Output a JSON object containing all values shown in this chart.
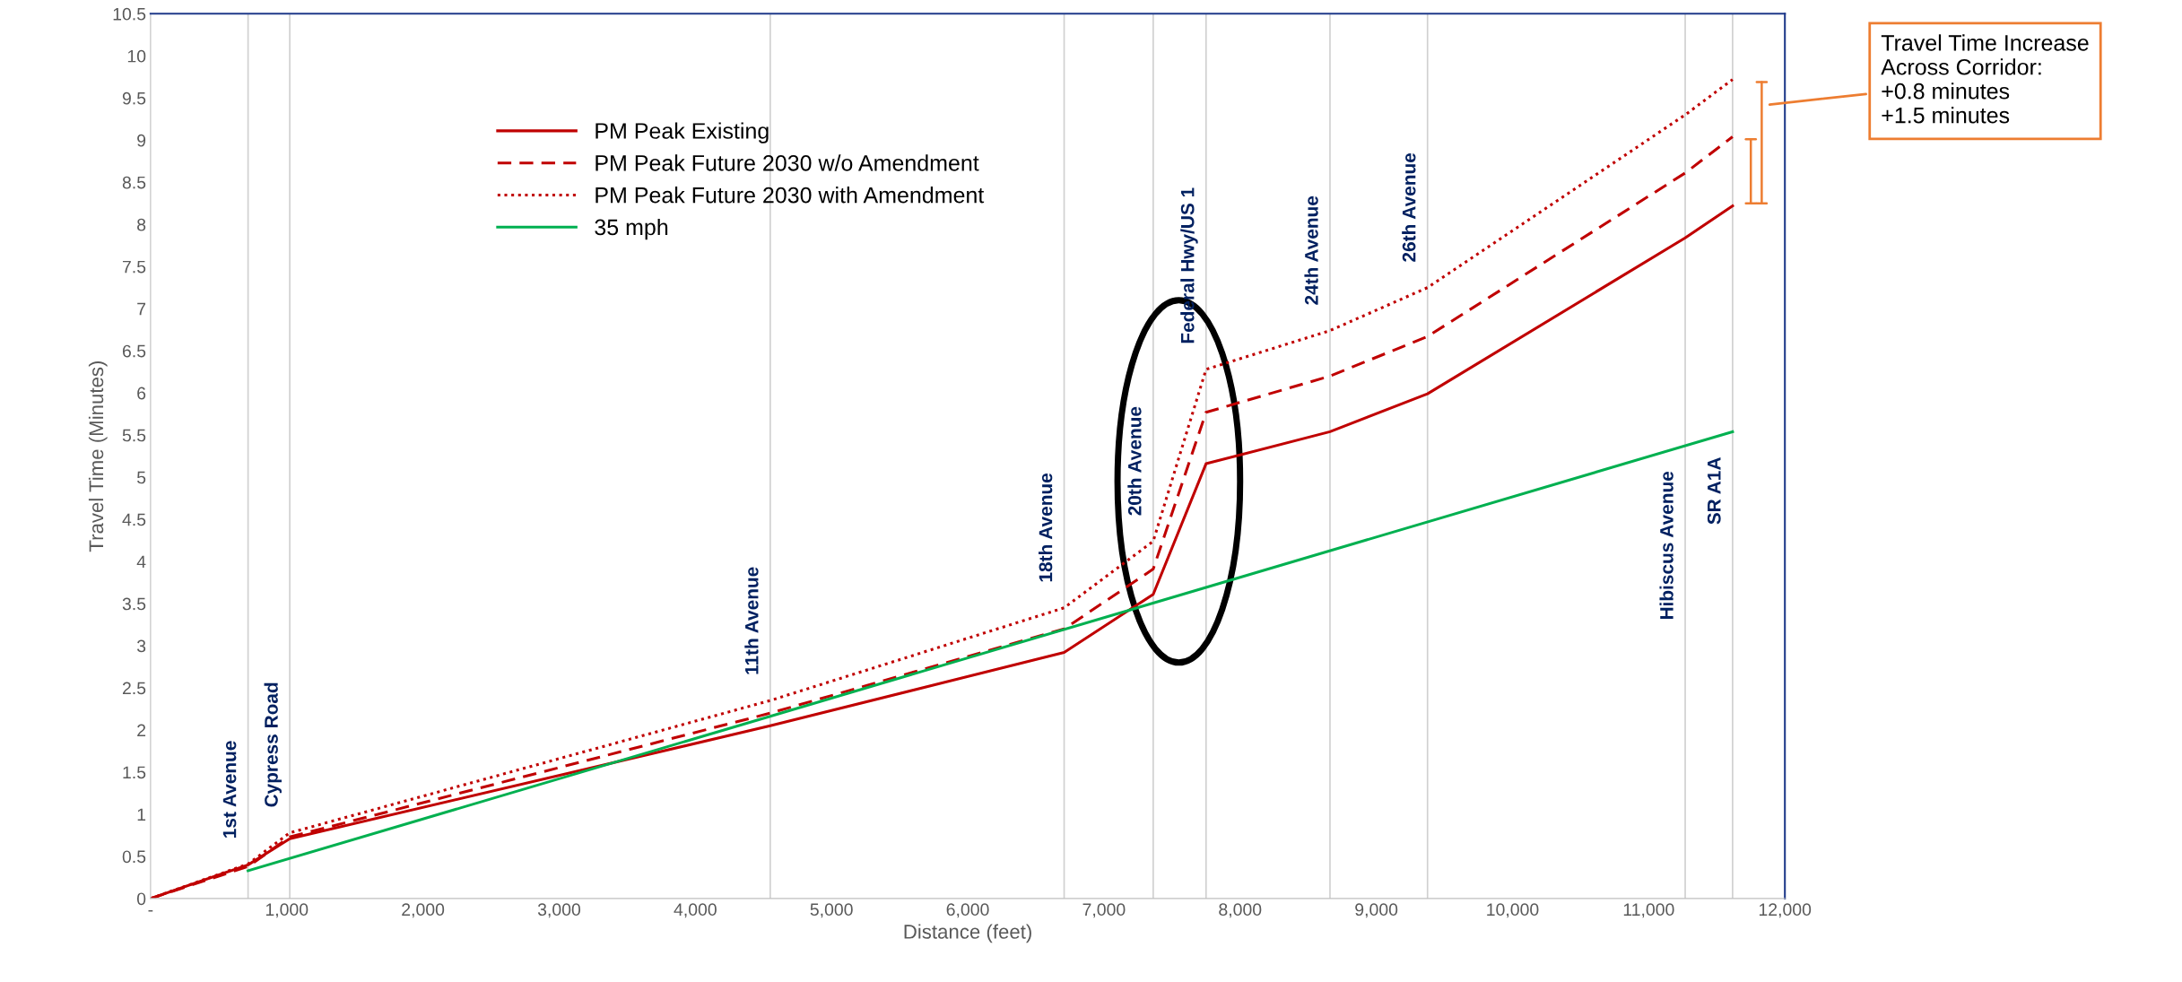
{
  "chart_data": {
    "type": "line",
    "xlabel": "Distance (feet)",
    "ylabel": "Travel Time (Minutes)",
    "x": [
      0,
      716,
      1022,
      4550,
      6708,
      7362,
      7750,
      8660,
      9376,
      11268,
      11616
    ],
    "series": [
      {
        "name": "PM Peak Existing",
        "color": "#c00000",
        "line_style": "solid",
        "values": [
          0,
          0.4,
          0.71,
          2.05,
          2.92,
          3.61,
          5.16,
          5.54,
          5.99,
          7.84,
          8.22
        ]
      },
      {
        "name": "PM Peak Future 2030 w/o Amendment",
        "color": "#c00000",
        "line_style": "dashed",
        "values": [
          0,
          0.38,
          0.73,
          2.2,
          3.2,
          3.91,
          5.77,
          6.2,
          6.67,
          8.61,
          9.04
        ]
      },
      {
        "name": "PM Peak Future 2030 with Amendment",
        "color": "#c00000",
        "line_style": "dotted",
        "values": [
          0,
          0.41,
          0.78,
          2.35,
          3.45,
          4.24,
          6.28,
          6.74,
          7.25,
          9.3,
          9.72
        ]
      },
      {
        "name": "35 mph",
        "color": "#00b050",
        "line_style": "solid",
        "x": [
          716,
          11616
        ],
        "values": [
          0.33,
          5.54
        ]
      }
    ],
    "xlim": [
      0,
      12000
    ],
    "xticks": [
      {
        "value": 0,
        "label": "-"
      },
      {
        "value": 1000,
        "label": "1,000"
      },
      {
        "value": 2000,
        "label": "2,000"
      },
      {
        "value": 3000,
        "label": "3,000"
      },
      {
        "value": 4000,
        "label": "4,000"
      },
      {
        "value": 5000,
        "label": "5,000"
      },
      {
        "value": 6000,
        "label": "6,000"
      },
      {
        "value": 7000,
        "label": "7,000"
      },
      {
        "value": 8000,
        "label": "8,000"
      },
      {
        "value": 9000,
        "label": "9,000"
      },
      {
        "value": 10000,
        "label": "10,000"
      },
      {
        "value": 11000,
        "label": "11,000"
      },
      {
        "value": 12000,
        "label": "12,000"
      }
    ],
    "ylim": [
      0,
      10.5
    ],
    "yticks": [
      0,
      0.5,
      1,
      1.5,
      2,
      2.5,
      3,
      3.5,
      4,
      4.5,
      5,
      5.5,
      6,
      6.5,
      7,
      7.5,
      8,
      8.5,
      9,
      9.5,
      10,
      10.5
    ],
    "ref_lines": [
      {
        "axis": "x",
        "value": 716,
        "label": "1st Avenue",
        "color": "#d0d0d0"
      },
      {
        "axis": "x",
        "value": 1022,
        "label": "Cypress Road",
        "color": "#d0d0d0"
      },
      {
        "axis": "x",
        "value": 4550,
        "label": "11th Avenue",
        "color": "#d0d0d0"
      },
      {
        "axis": "x",
        "value": 6708,
        "label": "18th Avenue",
        "color": "#d0d0d0"
      },
      {
        "axis": "x",
        "value": 7362,
        "label": "20th Avenue",
        "color": "#d0d0d0"
      },
      {
        "axis": "x",
        "value": 7750,
        "label": "Federal Hwy/US 1",
        "color": "#d0d0d0"
      },
      {
        "axis": "x",
        "value": 8660,
        "label": "24th Avenue",
        "color": "#d0d0d0"
      },
      {
        "axis": "x",
        "value": 9376,
        "label": "26th Avenue",
        "color": "#d0d0d0"
      },
      {
        "axis": "x",
        "value": 11268,
        "label": "Hibiscus Avenue",
        "color": "#d0d0d0"
      },
      {
        "axis": "x",
        "value": 11616,
        "label": "SR A1A",
        "color": "#d0d0d0"
      }
    ],
    "annotations": [
      "Travel Time Increase\nAcross Corridor:\n+0.8 minutes\n+1.5 minutes"
    ],
    "legend": "top left",
    "grid": false
  }
}
